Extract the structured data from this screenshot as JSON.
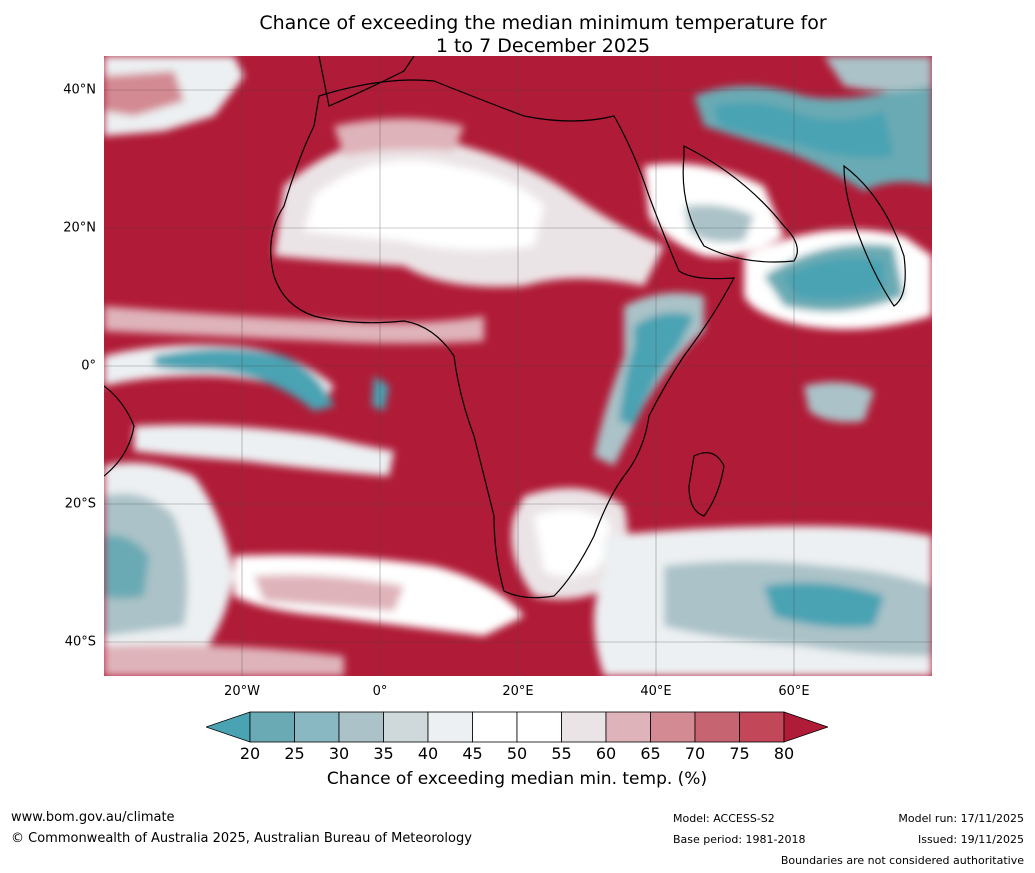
{
  "title": {
    "line1": "Chance of exceeding the median minimum temperature for",
    "line2": "1 to 7 December 2025"
  },
  "map": {
    "lat_ticks": [
      {
        "value": 40,
        "label": "40°N"
      },
      {
        "value": 20,
        "label": "20°N"
      },
      {
        "value": 0,
        "label": "0°"
      },
      {
        "value": -20,
        "label": "20°S"
      },
      {
        "value": -40,
        "label": "40°S"
      }
    ],
    "lon_ticks": [
      {
        "value": -20,
        "label": "20°W"
      },
      {
        "value": 0,
        "label": "0°"
      },
      {
        "value": 20,
        "label": "20°E"
      },
      {
        "value": 40,
        "label": "40°E"
      },
      {
        "value": 60,
        "label": "60°E"
      }
    ],
    "extent": {
      "lon_min": -40,
      "lon_max": 80,
      "lat_min": -45,
      "lat_max": 45
    }
  },
  "colorbar": {
    "ticks": [
      "20",
      "25",
      "30",
      "35",
      "40",
      "45",
      "50",
      "55",
      "60",
      "65",
      "70",
      "75",
      "80"
    ],
    "colors": [
      "#4aa3b3",
      "#6aaab4",
      "#89b8c3",
      "#aac2c8",
      "#cfd8da",
      "#ecf0f2",
      "#ffffff",
      "#ffffff",
      "#ebe4e6",
      "#dfb3ba",
      "#d38a93",
      "#c66571",
      "#c24758",
      "#b01b37"
    ],
    "label": "Chance of exceeding median min. temp. (%)"
  },
  "footer": {
    "website": "www.bom.gov.au/climate",
    "copyright": "© Commonwealth of Australia 2025, Australian Bureau of Meteorology",
    "model": "Model: ACCESS-S2",
    "base_period": "Base period: 1981-2018",
    "model_run": "Model run: 17/11/2025",
    "issued": "Issued: 19/11/2025",
    "disclaimer": "Boundaries are not considered authoritative"
  }
}
